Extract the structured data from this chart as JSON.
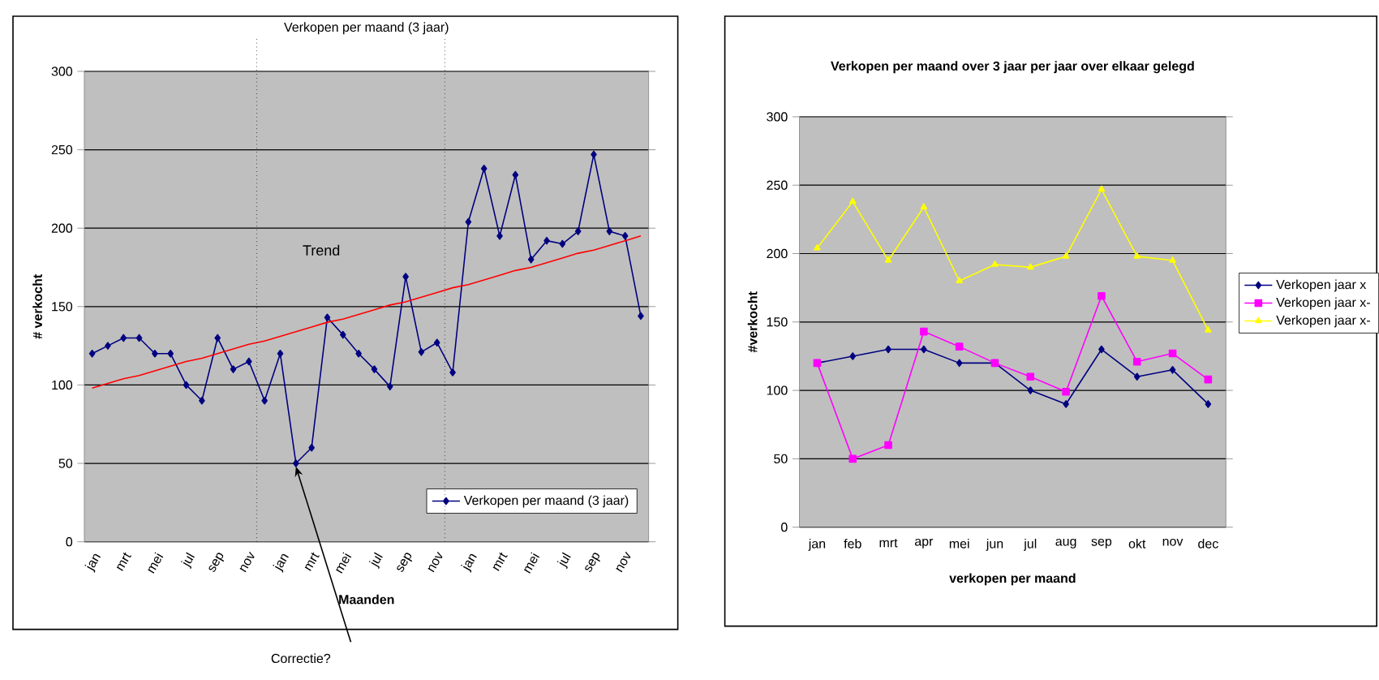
{
  "chart_data": [
    {
      "type": "line",
      "title": "Verkopen per maand (3 jaar)",
      "xlabel": "Maanden",
      "ylabel": "# verkocht",
      "categories": [
        "jan",
        null,
        "mrt",
        null,
        "mei",
        null,
        "jul",
        null,
        "sep",
        null,
        "nov",
        null,
        "jan",
        null,
        "mrt",
        null,
        "mei",
        null,
        "jul",
        null,
        "sep",
        null,
        "nov",
        null,
        "jan",
        null,
        "mrt",
        null,
        "mei",
        null,
        "jul",
        null,
        "sep",
        null,
        "nov",
        null
      ],
      "ylim": [
        0,
        300
      ],
      "yticks": [
        0,
        50,
        100,
        150,
        200,
        250,
        300
      ],
      "grid": "y",
      "legend": "right",
      "marker": "diamond",
      "series": [
        {
          "name": "Verkopen per maand (3 jaar)",
          "color": "#000080",
          "values": [
            120,
            125,
            130,
            130,
            120,
            120,
            100,
            90,
            130,
            110,
            115,
            90,
            120,
            50,
            60,
            143,
            132,
            120,
            110,
            99,
            169,
            121,
            127,
            108,
            204,
            238,
            195,
            234,
            180,
            192,
            190,
            198,
            247,
            198,
            195,
            144
          ]
        },
        {
          "color": "#ff0000",
          "marker": "none",
          "values": [
            98,
            101,
            104,
            106,
            109,
            112,
            115,
            117,
            120,
            123,
            126,
            128,
            131,
            134,
            137,
            140,
            142,
            145,
            148,
            151,
            153,
            156,
            159,
            162,
            164,
            167,
            170,
            173,
            175,
            178,
            181,
            184,
            186,
            189,
            192,
            195
          ]
        }
      ],
      "annotations": [
        "Trend",
        "Correctie?"
      ]
    },
    {
      "type": "line",
      "title": "Verkopen per maand over 3 jaar per jaar over elkaar gelegd",
      "xlabel": "verkopen per maand",
      "ylabel": "#verkocht",
      "categories": [
        "jan",
        "feb",
        "mrt",
        "apr",
        "mei",
        "jun",
        "jul",
        "aug",
        "sep",
        "okt",
        "nov",
        "dec"
      ],
      "ylim": [
        0,
        300
      ],
      "yticks": [
        0,
        50,
        100,
        150,
        200,
        250,
        300
      ],
      "grid": "y",
      "legend": "right",
      "series": [
        {
          "name": "Verkopen jaar x",
          "color": "#000080",
          "marker": "diamond",
          "values": [
            120,
            125,
            130,
            130,
            120,
            120,
            100,
            90,
            130,
            110,
            115,
            90
          ]
        },
        {
          "name": "Verkopen jaar x-",
          "color": "#ff00ff",
          "marker": "square",
          "values": [
            120,
            50,
            60,
            143,
            132,
            120,
            110,
            99,
            169,
            121,
            127,
            108
          ]
        },
        {
          "name": "Verkopen jaar x-",
          "color": "#ffff00",
          "marker": "triangle",
          "values": [
            204,
            238,
            195,
            234,
            180,
            192,
            190,
            198,
            247,
            198,
            195,
            144
          ]
        }
      ]
    }
  ]
}
